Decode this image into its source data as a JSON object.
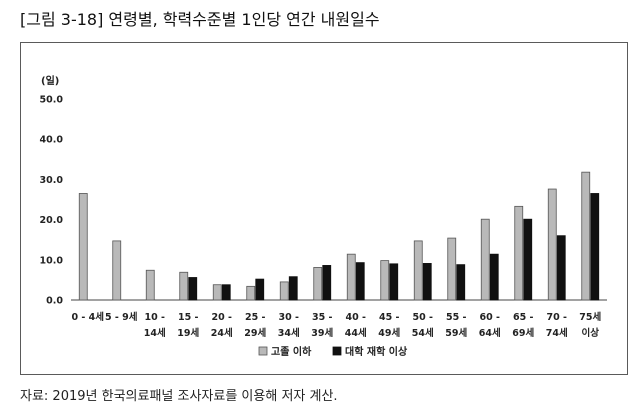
{
  "figure": {
    "title": "[그림 3-18] 연령별, 학력수준별 1인당 연간 내원일수",
    "source": "자료: 2019년 한국의료패널 조사자료를 이용해 저자 계산."
  },
  "colors": {
    "series_light": "#b9b9b9",
    "series_dark": "#111111",
    "axis": "#444444"
  },
  "chart_data": {
    "type": "bar",
    "ylabel": "(일)",
    "xlabel": "",
    "ylim": [
      0,
      50
    ],
    "yticks": [
      "0.0",
      "10.0",
      "20.0",
      "30.0",
      "40.0",
      "50.0"
    ],
    "categories": [
      [
        "0 - 4세"
      ],
      [
        "5 - 9세"
      ],
      [
        "10 -",
        "14세"
      ],
      [
        "15 -",
        "19세"
      ],
      [
        "20 -",
        "24세"
      ],
      [
        "25 -",
        "29세"
      ],
      [
        "30 -",
        "34세"
      ],
      [
        "35 -",
        "39세"
      ],
      [
        "40 -",
        "44세"
      ],
      [
        "45 -",
        "49세"
      ],
      [
        "50 -",
        "54세"
      ],
      [
        "55 -",
        "59세"
      ],
      [
        "60 -",
        "64세"
      ],
      [
        "65 -",
        "69세"
      ],
      [
        "70 -",
        "74세"
      ],
      [
        "75세",
        "이상"
      ]
    ],
    "series": [
      {
        "name": "고졸 이하",
        "values": [
          26.5,
          14.7,
          7.4,
          6.9,
          3.8,
          3.4,
          4.5,
          8.1,
          11.4,
          9.8,
          14.7,
          15.4,
          20.1,
          23.3,
          27.6,
          31.8
        ]
      },
      {
        "name": "대학 재학 이상",
        "values": [
          null,
          null,
          null,
          5.6,
          3.8,
          5.2,
          5.8,
          8.6,
          9.3,
          9.0,
          9.1,
          8.8,
          11.4,
          20.1,
          16.0,
          26.5
        ]
      }
    ],
    "legend_position": "bottom-center",
    "grid": false
  }
}
